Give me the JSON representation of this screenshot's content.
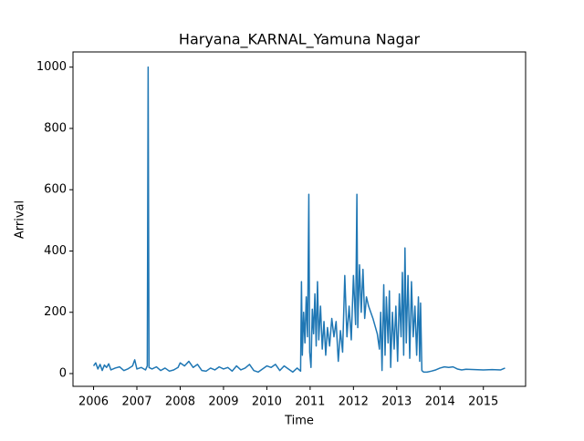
{
  "chart_data": {
    "type": "line",
    "title": "Haryana_KARNAL_Yamuna Nagar",
    "xlabel": "Time",
    "ylabel": "Arrival",
    "color": "#1f77b4",
    "x": [
      2006.0,
      2006.05,
      2006.1,
      2006.15,
      2006.2,
      2006.25,
      2006.3,
      2006.35,
      2006.4,
      2006.5,
      2006.6,
      2006.7,
      2006.8,
      2006.9,
      2006.95,
      2007.0,
      2007.1,
      2007.2,
      2007.24,
      2007.26,
      2007.28,
      2007.35,
      2007.45,
      2007.55,
      2007.65,
      2007.75,
      2007.85,
      2007.95,
      2008.0,
      2008.1,
      2008.2,
      2008.3,
      2008.4,
      2008.5,
      2008.6,
      2008.7,
      2008.8,
      2008.9,
      2009.0,
      2009.1,
      2009.2,
      2009.3,
      2009.4,
      2009.5,
      2009.6,
      2009.7,
      2009.8,
      2009.9,
      2010.0,
      2010.1,
      2010.2,
      2010.3,
      2010.4,
      2010.5,
      2010.6,
      2010.7,
      2010.78,
      2010.8,
      2010.82,
      2010.85,
      2010.88,
      2010.91,
      2010.94,
      2010.97,
      2010.99,
      2011.02,
      2011.05,
      2011.08,
      2011.11,
      2011.14,
      2011.17,
      2011.2,
      2011.24,
      2011.28,
      2011.32,
      2011.36,
      2011.4,
      2011.45,
      2011.5,
      2011.55,
      2011.6,
      2011.65,
      2011.7,
      2011.75,
      2011.8,
      2011.85,
      2011.9,
      2011.95,
      2012.0,
      2012.05,
      2012.08,
      2012.1,
      2012.14,
      2012.18,
      2012.22,
      2012.26,
      2012.3,
      2012.35,
      2012.45,
      2012.55,
      2012.6,
      2012.63,
      2012.66,
      2012.7,
      2012.73,
      2012.76,
      2012.8,
      2012.83,
      2012.86,
      2012.9,
      2012.94,
      2012.98,
      2013.02,
      2013.06,
      2013.1,
      2013.13,
      2013.16,
      2013.19,
      2013.22,
      2013.26,
      2013.3,
      2013.34,
      2013.38,
      2013.42,
      2013.46,
      2013.5,
      2013.53,
      2013.55,
      2013.58,
      2013.62,
      2013.7,
      2013.8,
      2013.9,
      2014.0,
      2014.1,
      2014.2,
      2014.3,
      2014.4,
      2014.5,
      2014.6,
      2014.8,
      2015.0,
      2015.2,
      2015.4,
      2015.5
    ],
    "values": [
      25,
      35,
      15,
      30,
      10,
      28,
      20,
      32,
      12,
      18,
      22,
      10,
      16,
      25,
      45,
      15,
      20,
      12,
      25,
      1000,
      20,
      15,
      22,
      10,
      18,
      8,
      12,
      20,
      35,
      25,
      40,
      20,
      30,
      10,
      8,
      18,
      12,
      22,
      15,
      20,
      8,
      25,
      12,
      18,
      30,
      10,
      5,
      15,
      25,
      20,
      30,
      10,
      25,
      15,
      5,
      18,
      8,
      300,
      60,
      200,
      100,
      250,
      120,
      585,
      70,
      20,
      210,
      130,
      260,
      90,
      300,
      110,
      220,
      80,
      170,
      60,
      150,
      90,
      180,
      120,
      170,
      40,
      140,
      70,
      320,
      120,
      220,
      110,
      320,
      160,
      585,
      150,
      355,
      200,
      340,
      180,
      250,
      220,
      180,
      130,
      80,
      200,
      10,
      290,
      60,
      250,
      100,
      270,
      20,
      200,
      80,
      220,
      40,
      260,
      120,
      330,
      60,
      410,
      100,
      320,
      50,
      300,
      120,
      220,
      60,
      250,
      40,
      230,
      10,
      5,
      5,
      8,
      12,
      18,
      22,
      20,
      22,
      15,
      12,
      14,
      13,
      12,
      13,
      12,
      18
    ],
    "xlim": [
      2005.525,
      2015.975
    ],
    "xticks": [
      2006,
      2007,
      2008,
      2009,
      2010,
      2011,
      2012,
      2013,
      2014,
      2015
    ],
    "ylim": [
      -41.6,
      1049.6
    ],
    "yticks": [
      0,
      200,
      400,
      600,
      800,
      1000
    ]
  }
}
